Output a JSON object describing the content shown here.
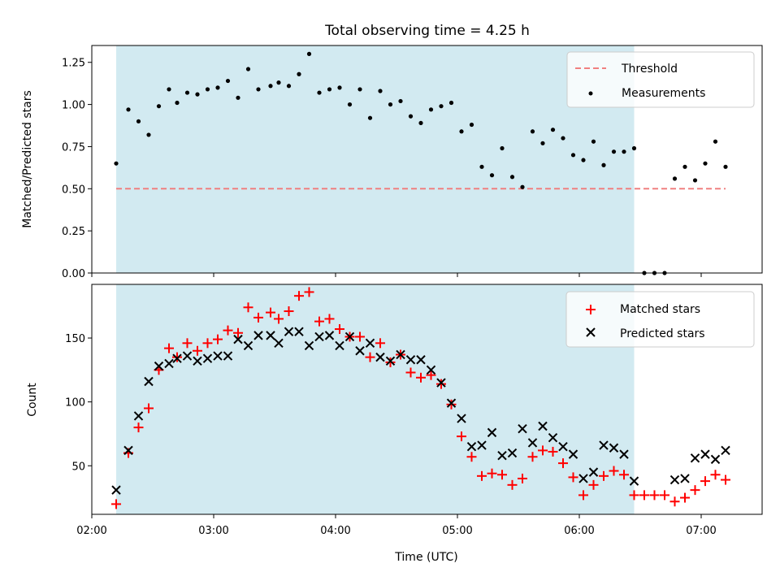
{
  "colors": {
    "shade": "#add8e6",
    "threshold": "#f08080",
    "measurement": "#000000",
    "matched": "#ff0000",
    "predicted": "#000000"
  },
  "chart_data": [
    {
      "type": "scatter",
      "title": "Total observing time = 4.25 h",
      "xlabel": "",
      "ylabel": "Matched/Predicted stars",
      "xlim": [
        "02:00",
        "07:30"
      ],
      "ylim": [
        0,
        1.35
      ],
      "yticks": [
        "0.00",
        "0.25",
        "0.50",
        "0.75",
        "1.00",
        "1.25"
      ],
      "shaded_interval": [
        "02:12",
        "06:27"
      ],
      "legend": {
        "placement": "upper right",
        "threshold_label": "Threshold",
        "measurements_label": "Measurements"
      },
      "threshold": {
        "value": 0.5,
        "x_range": [
          "02:12",
          "07:12"
        ]
      },
      "measurements": {
        "x": [
          "02:12",
          "02:18",
          "02:23",
          "02:28",
          "02:33",
          "02:38",
          "02:42",
          "02:47",
          "02:52",
          "02:57",
          "03:02",
          "03:07",
          "03:12",
          "03:17",
          "03:22",
          "03:28",
          "03:32",
          "03:37",
          "03:42",
          "03:47",
          "03:52",
          "03:57",
          "04:02",
          "04:07",
          "04:12",
          "04:17",
          "04:22",
          "04:27",
          "04:32",
          "04:37",
          "04:42",
          "04:47",
          "04:52",
          "04:57",
          "05:02",
          "05:07",
          "05:12",
          "05:17",
          "05:22",
          "05:27",
          "05:32",
          "05:37",
          "05:42",
          "05:47",
          "05:52",
          "05:57",
          "06:02",
          "06:07",
          "06:12",
          "06:17",
          "06:22",
          "06:27",
          "06:32",
          "06:37",
          "06:42",
          "06:47",
          "06:52",
          "06:57",
          "07:02",
          "07:07",
          "07:12"
        ],
        "y": [
          0.65,
          0.97,
          0.9,
          0.82,
          0.99,
          1.09,
          1.01,
          1.07,
          1.06,
          1.09,
          1.1,
          1.14,
          1.04,
          1.21,
          1.09,
          1.11,
          1.13,
          1.11,
          1.18,
          1.3,
          1.07,
          1.09,
          1.1,
          1.0,
          1.09,
          0.92,
          1.08,
          1.0,
          1.02,
          0.93,
          0.89,
          0.97,
          0.99,
          1.01,
          0.84,
          0.88,
          0.63,
          0.58,
          0.74,
          0.57,
          0.51,
          0.84,
          0.77,
          0.85,
          0.8,
          0.7,
          0.67,
          0.78,
          0.64,
          0.72,
          0.72,
          0.74,
          0.0,
          0.0,
          0.0,
          0.56,
          0.63,
          0.55,
          0.65,
          0.78,
          0.63
        ]
      }
    },
    {
      "type": "scatter",
      "title": "",
      "xlabel": "Time (UTC)",
      "ylabel": "Count",
      "xlim": [
        "02:00",
        "07:30"
      ],
      "ylim": [
        12,
        192
      ],
      "xticks": [
        "02:00",
        "03:00",
        "04:00",
        "05:00",
        "06:00",
        "07:00"
      ],
      "yticks": [
        50,
        100,
        150
      ],
      "shaded_interval": [
        "02:12",
        "06:27"
      ],
      "legend": {
        "placement": "upper right",
        "matched_label": "Matched stars",
        "predicted_label": "Predicted stars"
      },
      "x": [
        "02:12",
        "02:18",
        "02:23",
        "02:28",
        "02:33",
        "02:38",
        "02:42",
        "02:47",
        "02:52",
        "02:57",
        "03:02",
        "03:07",
        "03:12",
        "03:17",
        "03:22",
        "03:28",
        "03:32",
        "03:37",
        "03:42",
        "03:47",
        "03:52",
        "03:57",
        "04:02",
        "04:07",
        "04:12",
        "04:17",
        "04:22",
        "04:27",
        "04:32",
        "04:37",
        "04:42",
        "04:47",
        "04:52",
        "04:57",
        "05:02",
        "05:07",
        "05:12",
        "05:17",
        "05:22",
        "05:27",
        "05:32",
        "05:37",
        "05:42",
        "05:47",
        "05:52",
        "05:57",
        "06:02",
        "06:07",
        "06:12",
        "06:17",
        "06:22",
        "06:27",
        "06:32",
        "06:37",
        "06:42",
        "06:47",
        "06:52",
        "06:57",
        "07:02",
        "07:07",
        "07:12"
      ],
      "series": [
        {
          "name": "Matched stars",
          "marker": "plus",
          "values": [
            20,
            60,
            80,
            95,
            125,
            142,
            135,
            146,
            140,
            146,
            149,
            156,
            154,
            174,
            166,
            170,
            165,
            171,
            183,
            186,
            163,
            165,
            157,
            151,
            151,
            135,
            146,
            131,
            137,
            123,
            119,
            121,
            114,
            98,
            73,
            57,
            42,
            44,
            43,
            35,
            40,
            57,
            62,
            61,
            52,
            41,
            27,
            35,
            42,
            46,
            43,
            27,
            27,
            27,
            27,
            22,
            25,
            31,
            38,
            43,
            39
          ]
        },
        {
          "name": "Predicted stars",
          "marker": "x",
          "values": [
            31,
            62,
            89,
            116,
            128,
            130,
            134,
            136,
            132,
            134,
            136,
            136,
            149,
            144,
            152,
            152,
            146,
            155,
            155,
            144,
            151,
            152,
            144,
            151,
            140,
            146,
            135,
            132,
            137,
            133,
            133,
            125,
            115,
            99,
            87,
            65,
            66,
            76,
            58,
            60,
            79,
            68,
            81,
            72,
            65,
            59,
            40,
            45,
            66,
            64,
            59,
            38,
            null,
            null,
            null,
            39,
            40,
            56,
            59,
            55,
            62
          ]
        }
      ]
    }
  ]
}
